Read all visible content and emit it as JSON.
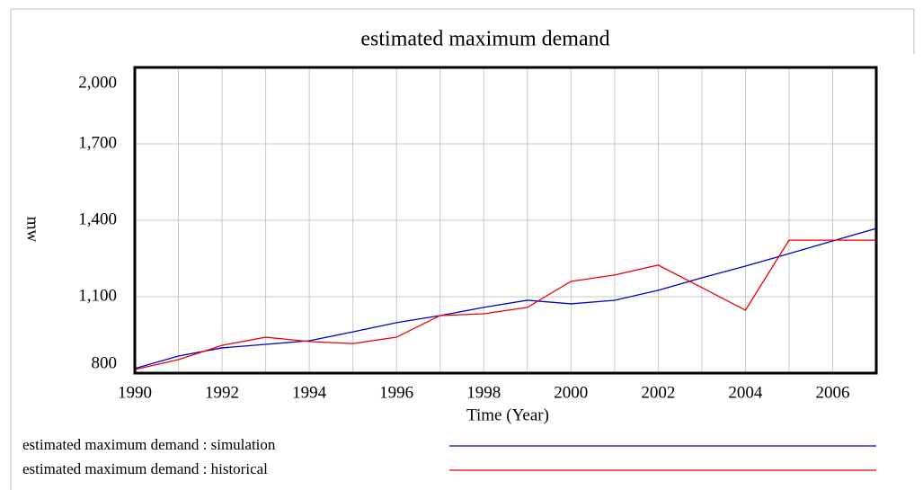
{
  "chart_data": {
    "type": "line",
    "title": "estimated maximum demand",
    "x_label": "Time (Year)",
    "y_label": "mw",
    "x": [
      1990,
      1991,
      1992,
      1993,
      1994,
      1995,
      1996,
      1997,
      1998,
      1999,
      2000,
      2001,
      2002,
      2003,
      2004,
      2005,
      2006,
      2007
    ],
    "series": [
      {
        "name": "estimated maximum demand : simulation",
        "color": "#0000cc",
        "values": [
          818,
          867,
          899,
          913,
          927,
          962,
          998,
          1026,
          1058,
          1086,
          1072,
          1086,
          1125,
          1174,
          1220,
          1269,
          1319,
          1368
        ]
      },
      {
        "name": "estimated maximum demand : historical",
        "color": "#ee0000",
        "values": [
          814,
          853,
          909,
          941,
          924,
          916,
          941,
          1026,
          1033,
          1058,
          1160,
          1185,
          1224,
          1136,
          1047,
          1322,
          1322,
          1322
        ]
      }
    ],
    "xlim": [
      1990,
      2007
    ],
    "xticks": [
      1990,
      1992,
      1994,
      1996,
      1998,
      2000,
      2002,
      2004,
      2006
    ],
    "x_minor_ticks": [
      1991,
      1993,
      1995,
      1997,
      1999,
      2001,
      2003,
      2005
    ],
    "ylim": [
      800,
      2000
    ],
    "yticks": [
      {
        "value": 800,
        "label": "800"
      },
      {
        "value": 1100,
        "label": "1,100"
      },
      {
        "value": 1400,
        "label": "1,400"
      },
      {
        "value": 1700,
        "label": "1,700"
      },
      {
        "value": 2000,
        "label": "2,000"
      }
    ],
    "grid": true
  }
}
